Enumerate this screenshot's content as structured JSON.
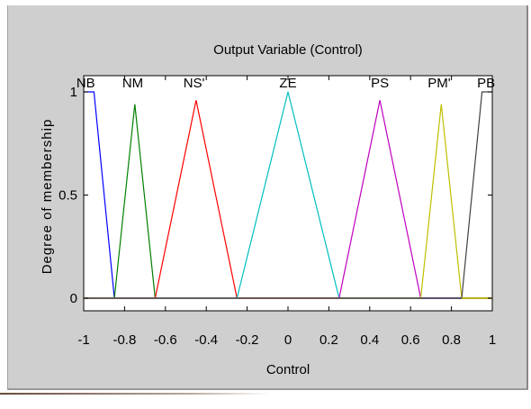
{
  "chart_data": {
    "type": "line",
    "title": "Output Variable (Control)",
    "xlabel": "Control",
    "ylabel": "Degree of membership",
    "xlim": [
      -1,
      1
    ],
    "ylim": [
      0,
      1
    ],
    "x_ticks": [
      "-1",
      "-0.8",
      "-0.6",
      "-0.4",
      "-0.2",
      "0",
      "0.2",
      "0.4",
      "0.6",
      "0.8",
      "1"
    ],
    "y_ticks": [
      "0",
      "0.5",
      "1"
    ],
    "grid": false,
    "series": [
      {
        "name": "NB",
        "color": "#0000ff",
        "points": [
          [
            -1,
            1
          ],
          [
            -0.95,
            1
          ],
          [
            -0.85,
            0
          ],
          [
            1,
            0
          ]
        ]
      },
      {
        "name": "NM",
        "color": "#008000",
        "points": [
          [
            -1,
            0
          ],
          [
            -0.85,
            0
          ],
          [
            -0.75,
            0.94
          ],
          [
            -0.65,
            0
          ],
          [
            1,
            0
          ]
        ]
      },
      {
        "name": "NS",
        "color": "#ff0000",
        "points": [
          [
            -1,
            0
          ],
          [
            -0.65,
            0
          ],
          [
            -0.45,
            0.96
          ],
          [
            -0.25,
            0
          ],
          [
            1,
            0
          ]
        ]
      },
      {
        "name": "ZE",
        "color": "#00bfbf",
        "points": [
          [
            -1,
            0
          ],
          [
            -0.25,
            0
          ],
          [
            0,
            1
          ],
          [
            0.25,
            0
          ],
          [
            1,
            0
          ]
        ]
      },
      {
        "name": "PS",
        "color": "#bf00bf",
        "points": [
          [
            -1,
            0
          ],
          [
            0.25,
            0
          ],
          [
            0.45,
            0.96
          ],
          [
            0.65,
            0
          ],
          [
            1,
            0
          ]
        ]
      },
      {
        "name": "PM",
        "color": "#bfbf00",
        "points": [
          [
            -1,
            0
          ],
          [
            0.65,
            0
          ],
          [
            0.75,
            0.94
          ],
          [
            0.85,
            0
          ],
          [
            1,
            0
          ]
        ]
      },
      {
        "name": "PB",
        "color": "#404040",
        "points": [
          [
            -1,
            0
          ],
          [
            0.85,
            0
          ],
          [
            0.95,
            1
          ],
          [
            1,
            1
          ]
        ]
      }
    ],
    "mf_labels": [
      {
        "text": "NB",
        "x": -0.99
      },
      {
        "text": "NM",
        "x": -0.76
      },
      {
        "text": "NS'",
        "x": -0.46
      },
      {
        "text": "ZE",
        "x": 0
      },
      {
        "text": "PS",
        "x": 0.45
      },
      {
        "text": "PM'",
        "x": 0.74
      },
      {
        "text": "PB",
        "x": 0.97
      }
    ],
    "baseline_color": "#bfbf00"
  }
}
